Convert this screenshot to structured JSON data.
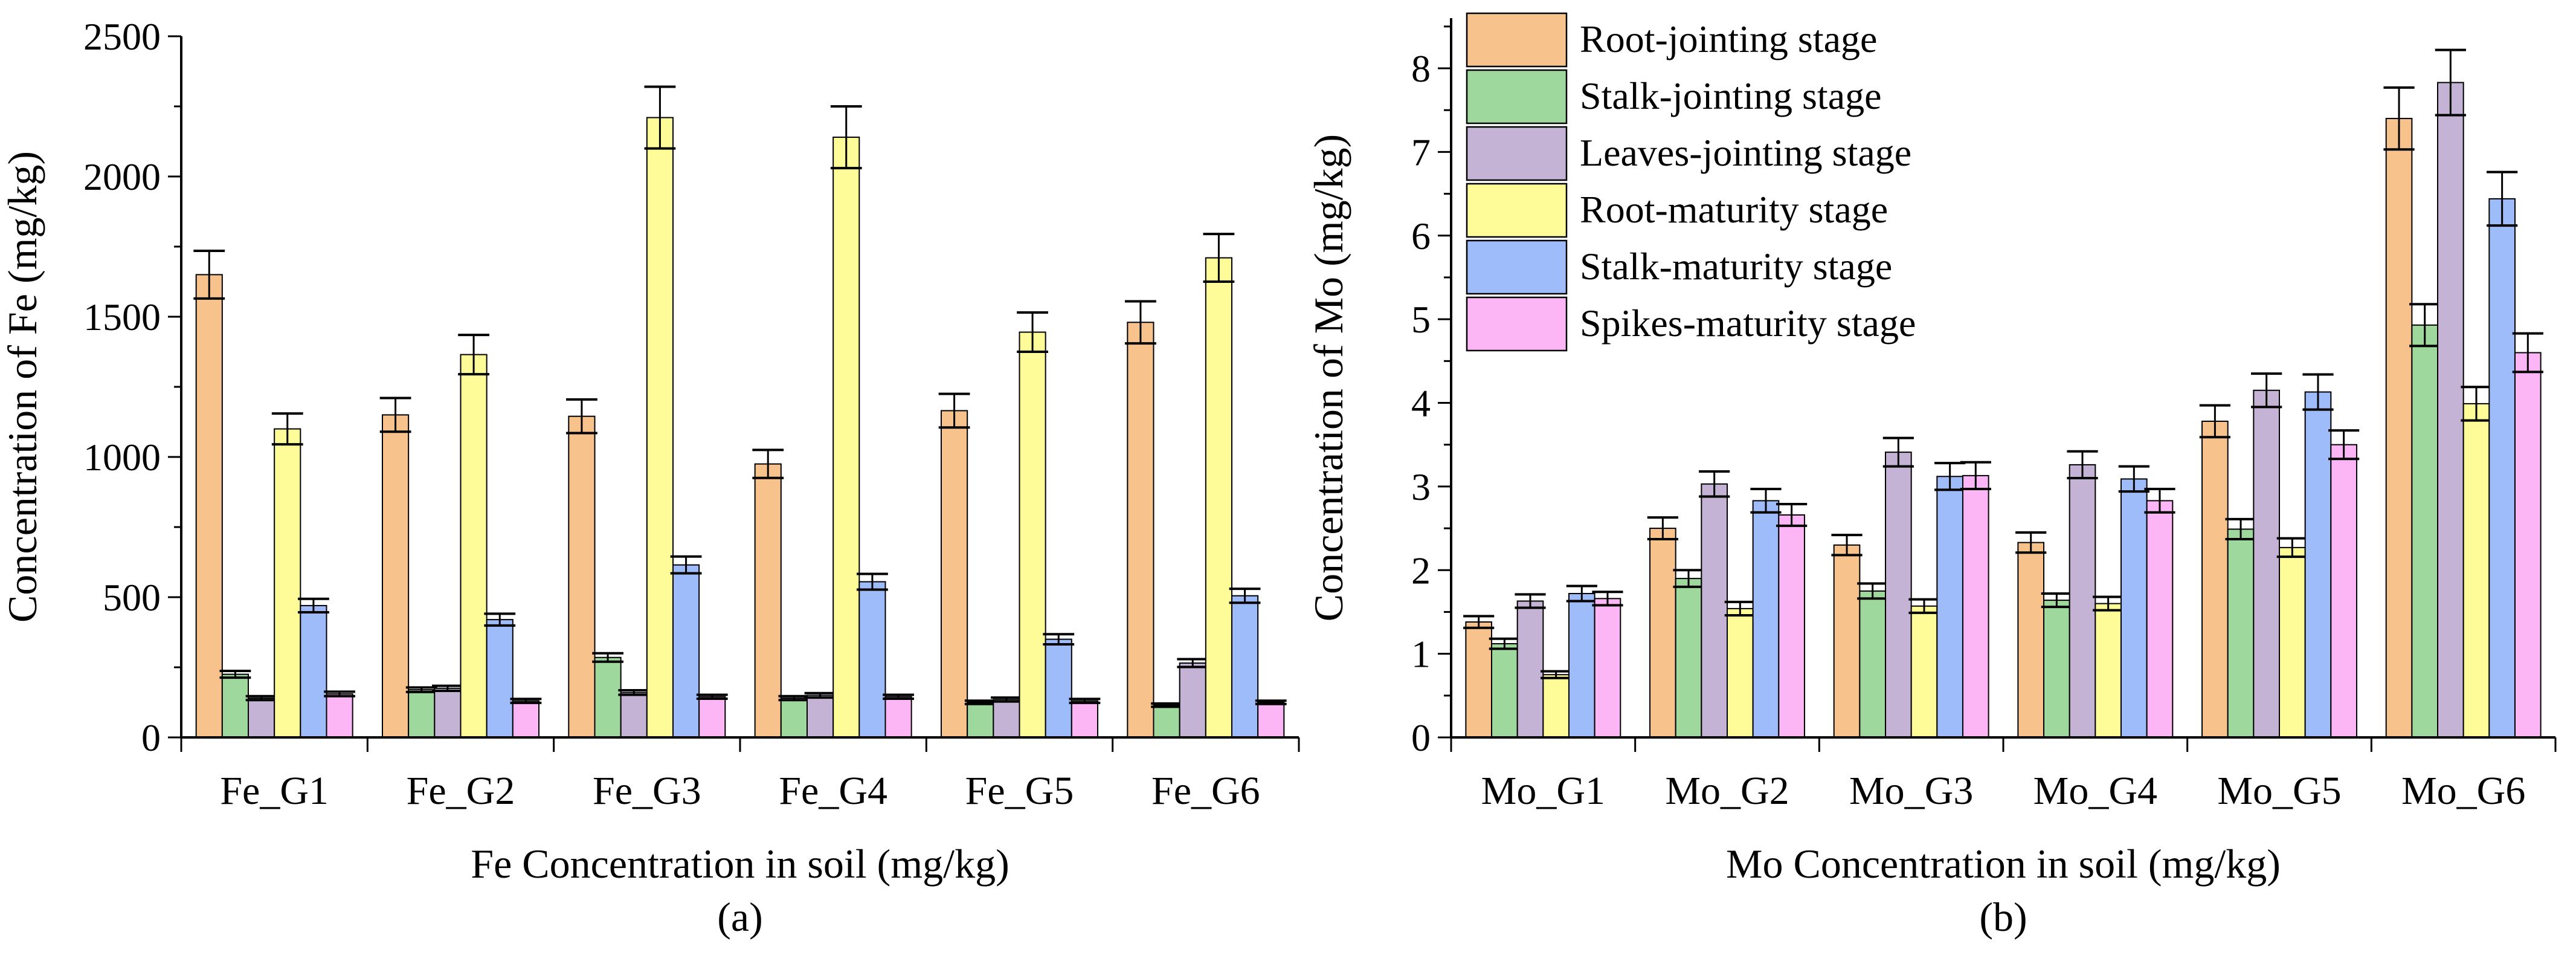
{
  "legend": {
    "series": [
      {
        "name": "Root-jointing stage",
        "color": "#f8c28c"
      },
      {
        "name": "Stalk-jointing stage",
        "color": "#9ed89c"
      },
      {
        "name": "Leaves-jointing stage",
        "color": "#c5b3d5"
      },
      {
        "name": "Root-maturity stage",
        "color": "#fdfc98"
      },
      {
        "name": "Stalk-maturity stage",
        "color": "#9ebcf9"
      },
      {
        "name": "Spikes-maturity stage",
        "color": "#fdb6f5"
      }
    ]
  },
  "chart_data": [
    {
      "type": "bar",
      "panel_label": "(a)",
      "xlabel": "Fe Concentration in soil (mg/kg)",
      "ylabel": "Concentration of Fe (mg/kg)",
      "ylim": [
        0,
        2500
      ],
      "yticks": [
        0,
        500,
        1000,
        1500,
        2000,
        2500
      ],
      "minor_step": 250,
      "categories": [
        "Fe_G1",
        "Fe_G2",
        "Fe_G3",
        "Fe_G4",
        "Fe_G5",
        "Fe_G6"
      ],
      "series": [
        {
          "name": "Root-jointing stage",
          "values": [
            1650,
            1150,
            1145,
            975,
            1165,
            1480
          ],
          "errors": [
            85,
            60,
            60,
            50,
            60,
            75
          ]
        },
        {
          "name": "Stalk-jointing stage",
          "values": [
            225,
            170,
            285,
            140,
            125,
            115
          ],
          "errors": [
            12,
            8,
            15,
            7,
            6,
            6
          ]
        },
        {
          "name": "Leaves-jointing stage",
          "values": [
            140,
            175,
            160,
            150,
            135,
            265
          ],
          "errors": [
            7,
            9,
            8,
            8,
            7,
            14
          ]
        },
        {
          "name": "Root-maturity stage",
          "values": [
            1100,
            1365,
            2210,
            2140,
            1445,
            1710
          ],
          "errors": [
            55,
            70,
            110,
            110,
            70,
            85
          ]
        },
        {
          "name": "Stalk-maturity stage",
          "values": [
            470,
            420,
            615,
            555,
            350,
            505
          ],
          "errors": [
            24,
            21,
            30,
            28,
            18,
            25
          ]
        },
        {
          "name": "Spikes-maturity stage",
          "values": [
            155,
            130,
            145,
            145,
            130,
            125
          ],
          "errors": [
            8,
            7,
            7,
            7,
            7,
            6
          ]
        }
      ]
    },
    {
      "type": "bar",
      "panel_label": "(b)",
      "xlabel": "Mo Concentration in soil (mg/kg)",
      "ylabel": "Concentration of Mo (mg/kg)",
      "ylim": [
        0,
        8.6
      ],
      "yticks": [
        0,
        1,
        2,
        3,
        4,
        5,
        6,
        7,
        8
      ],
      "minor_step": 0.5,
      "categories": [
        "Mo_G1",
        "Mo_G2",
        "Mo_G3",
        "Mo_G4",
        "Mo_G5",
        "Mo_G6"
      ],
      "series": [
        {
          "name": "Root-jointing stage",
          "values": [
            1.38,
            2.5,
            2.3,
            2.33,
            3.78,
            7.4
          ],
          "errors": [
            0.07,
            0.13,
            0.12,
            0.12,
            0.19,
            0.37
          ]
        },
        {
          "name": "Stalk-jointing stage",
          "values": [
            1.12,
            1.9,
            1.75,
            1.64,
            2.49,
            4.93
          ],
          "errors": [
            0.06,
            0.1,
            0.09,
            0.08,
            0.12,
            0.25
          ]
        },
        {
          "name": "Leaves-jointing stage",
          "values": [
            1.63,
            3.03,
            3.41,
            3.26,
            4.15,
            7.83
          ],
          "errors": [
            0.08,
            0.15,
            0.17,
            0.16,
            0.2,
            0.39
          ]
        },
        {
          "name": "Root-maturity stage",
          "values": [
            0.75,
            1.54,
            1.57,
            1.6,
            2.27,
            3.99
          ],
          "errors": [
            0.04,
            0.08,
            0.08,
            0.08,
            0.11,
            0.2
          ]
        },
        {
          "name": "Stalk-maturity stage",
          "values": [
            1.72,
            2.83,
            3.12,
            3.09,
            4.13,
            6.44
          ],
          "errors": [
            0.09,
            0.14,
            0.16,
            0.15,
            0.21,
            0.32
          ]
        },
        {
          "name": "Spikes-maturity stage",
          "values": [
            1.66,
            2.66,
            3.13,
            2.83,
            3.5,
            4.6
          ],
          "errors": [
            0.08,
            0.13,
            0.16,
            0.14,
            0.17,
            0.23
          ]
        }
      ]
    }
  ]
}
